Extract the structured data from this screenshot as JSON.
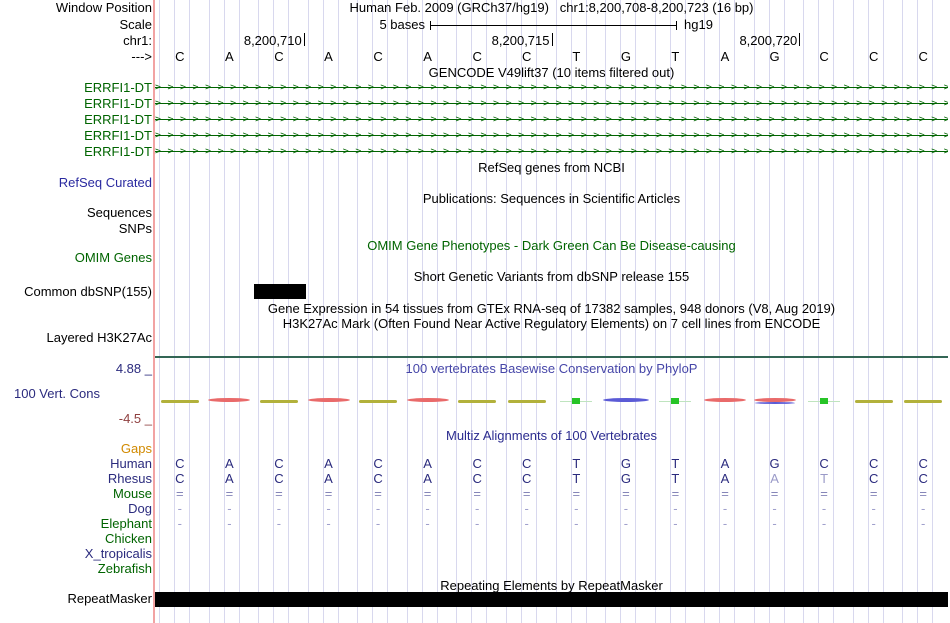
{
  "header": {
    "left_label": "Window Position",
    "title": "Human Feb. 2009 (GRCh37/hg19)   chr1:8,200,708-8,200,723 (16 bp)"
  },
  "scale": {
    "label": "Scale",
    "bar_label": "5 bases",
    "assembly": "hg19"
  },
  "position": {
    "label": "chr1:",
    "ticks": [
      {
        "text": "8,200,710",
        "base_boundary": 3
      },
      {
        "text": "8,200,715",
        "base_boundary": 8
      },
      {
        "text": "8,200,720",
        "base_boundary": 13
      }
    ]
  },
  "sequence": {
    "label": "--->",
    "bases": [
      "C",
      "A",
      "C",
      "A",
      "C",
      "A",
      "C",
      "C",
      "T",
      "G",
      "T",
      "A",
      "G",
      "C",
      "C",
      "C"
    ]
  },
  "tracks": {
    "gencode": {
      "title": "GENCODE V49lift37 (10 items filtered out)",
      "arrow_char": ">",
      "genes": [
        "ERRFI1-DT",
        "ERRFI1-DT",
        "ERRFI1-DT",
        "ERRFI1-DT",
        "ERRFI1-DT"
      ]
    },
    "refseq": {
      "title": "RefSeq genes from NCBI",
      "label": "RefSeq Curated"
    },
    "publications": {
      "title": "Publications: Sequences in Scientific Articles"
    },
    "sequences_label": "Sequences",
    "snps_label": "SNPs",
    "omim": {
      "title": "OMIM Gene Phenotypes - Dark Green Can Be Disease-causing",
      "label": "OMIM Genes"
    },
    "dbsnp": {
      "title": "Short Genetic Variants from dbSNP release 155",
      "label": "Common dbSNP(155)",
      "snp_base_index": 2
    },
    "gtex": {
      "title": "Gene Expression in 54 tissues from GTEx RNA-seq of 17382 samples, 948 donors (V8, Aug 2019)"
    },
    "h3k27ac": {
      "title": "H3K27Ac Mark (Often Found Near Active Regulatory Elements) on 7 cell lines from ENCODE",
      "label": "Layered H3K27Ac"
    },
    "conservation": {
      "title": "100 vertebrates Basewise Conservation by PhyloP",
      "label": "100 Vert. Cons",
      "max_label": "4.88 _",
      "min_label": "-4.5 _",
      "marks": [
        "olive",
        "red",
        "olive",
        "red",
        "olive",
        "red",
        "olive",
        "olive",
        "green",
        "blue",
        "green",
        "red",
        "redblue",
        "green",
        "olive",
        "olive"
      ]
    },
    "multiz": {
      "title": "Multiz Alignments of 100 Vertebrates",
      "rows": [
        {
          "label": "Gaps",
          "label_color": "orange",
          "cells": null,
          "cell_color": null
        },
        {
          "label": "Human",
          "label_color": "navy",
          "cell_color": "navy",
          "cells": [
            "C",
            "A",
            "C",
            "A",
            "C",
            "A",
            "C",
            "C",
            "T",
            "G",
            "T",
            "A",
            "G",
            "C",
            "C",
            "C"
          ]
        },
        {
          "label": "Rhesus",
          "label_color": "navy",
          "cell_color": "navy",
          "light_indices": [
            12,
            13
          ],
          "cells": [
            "C",
            "A",
            "C",
            "A",
            "C",
            "A",
            "C",
            "C",
            "T",
            "G",
            "T",
            "A",
            "A",
            "T",
            "C",
            "C"
          ]
        },
        {
          "label": "Mouse",
          "label_color": "green",
          "cell_color": "slate",
          "cells": [
            "=",
            "=",
            "=",
            "=",
            "=",
            "=",
            "=",
            "=",
            "=",
            "=",
            "=",
            "=",
            "=",
            "=",
            "=",
            "="
          ]
        },
        {
          "label": "Dog",
          "label_color": "navy",
          "cell_color": "lightslate",
          "cells": [
            "-",
            "-",
            "-",
            "-",
            "-",
            "-",
            "-",
            "-",
            "-",
            "-",
            "-",
            "-",
            "-",
            "-",
            "-",
            "-"
          ]
        },
        {
          "label": "Elephant",
          "label_color": "green",
          "cell_color": "lightslate",
          "cells": [
            "-",
            "-",
            "-",
            "-",
            "-",
            "-",
            "-",
            "-",
            "-",
            "-",
            "-",
            "-",
            "-",
            "-",
            "-",
            "-"
          ]
        },
        {
          "label": "Chicken",
          "label_color": "green",
          "cells": null,
          "cell_color": null
        },
        {
          "label": "X_tropicalis",
          "label_color": "navy",
          "cells": null,
          "cell_color": null
        },
        {
          "label": "Zebrafish",
          "label_color": "green",
          "cells": null,
          "cell_color": null
        }
      ]
    },
    "repeatmasker": {
      "title": "Repeating Elements by RepeatMasker",
      "label": "RepeatMasker"
    }
  },
  "colors": {
    "track_green": "#006400",
    "refseq_blue": "#2A2AA0",
    "navy": "#2B2B7E",
    "title_navy": "#2B2B8F",
    "cons_blue": "#4646A8",
    "maroon": "#8F4040",
    "orange": "#D18A00",
    "slate": "#8585B8",
    "lightslate": "#A0A0CC",
    "light": "#9A9AC8",
    "grid": "#D8D8EE",
    "salmon": "#F2A3A3",
    "teal": "#336655",
    "black": "#000000",
    "olive": "#B2B13B",
    "red": "#E96A6A",
    "green_mark": "#27C427",
    "green_line": "#BFE4BF",
    "blue_mark": "#5B5BD6"
  }
}
